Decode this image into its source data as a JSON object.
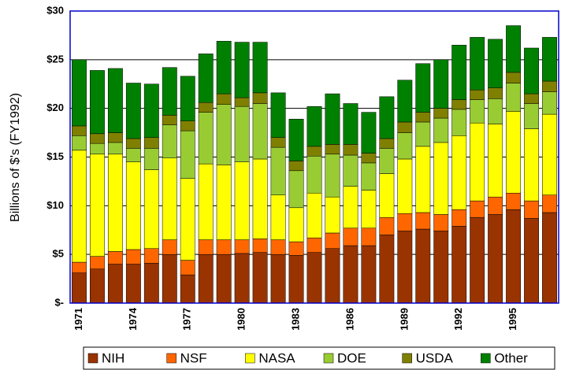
{
  "chart_data": {
    "type": "stacked_bar",
    "y_label": "Billions of $'s (FY1992)",
    "categories": [
      "1971",
      null,
      null,
      "1974",
      null,
      null,
      "1977",
      null,
      null,
      "1980",
      null,
      null,
      "1983",
      null,
      null,
      "1986",
      null,
      null,
      "1989",
      null,
      null,
      "1992",
      null,
      null,
      "1995",
      null,
      null
    ],
    "series": [
      {
        "name": "NIH",
        "color": "#993300",
        "values": [
          3.1,
          3.5,
          4.0,
          4.0,
          4.1,
          5.0,
          2.9,
          5.0,
          5.0,
          5.1,
          5.2,
          5.0,
          4.9,
          5.2,
          5.6,
          5.9,
          5.9,
          7.0,
          7.4,
          7.6,
          7.4,
          7.9,
          8.8,
          9.1,
          9.6,
          8.7,
          9.3
        ]
      },
      {
        "name": "NSF",
        "color": "#ff6600",
        "values": [
          1.1,
          1.3,
          1.3,
          1.5,
          1.5,
          1.5,
          1.5,
          1.5,
          1.5,
          1.4,
          1.4,
          1.5,
          1.4,
          1.5,
          1.6,
          1.8,
          1.8,
          1.8,
          1.8,
          1.7,
          1.7,
          1.7,
          1.7,
          1.8,
          1.7,
          1.8,
          1.8
        ]
      },
      {
        "name": "NASA",
        "color": "#ffff00",
        "values": [
          11.5,
          10.5,
          10.0,
          9.0,
          8.1,
          8.4,
          8.4,
          7.8,
          7.7,
          8.0,
          8.2,
          4.6,
          3.5,
          4.6,
          3.7,
          4.3,
          3.9,
          4.5,
          5.6,
          6.8,
          7.4,
          7.6,
          8.0,
          7.5,
          8.4,
          7.4,
          8.3
        ]
      },
      {
        "name": "DOE",
        "color": "#99cc33",
        "values": [
          1.5,
          1.1,
          1.2,
          1.4,
          2.2,
          3.4,
          4.9,
          5.3,
          6.2,
          5.7,
          5.7,
          4.9,
          3.8,
          3.8,
          4.4,
          3.2,
          2.8,
          2.6,
          2.7,
          2.5,
          2.5,
          2.7,
          2.4,
          2.6,
          2.9,
          2.6,
          2.3
        ]
      },
      {
        "name": "USDA",
        "color": "#808000",
        "values": [
          1.0,
          1.0,
          1.0,
          1.0,
          1.1,
          1.0,
          1.0,
          1.0,
          1.1,
          0.9,
          1.1,
          1.0,
          1.0,
          1.0,
          1.0,
          1.1,
          1.0,
          1.0,
          1.1,
          1.0,
          1.0,
          1.0,
          1.0,
          1.1,
          1.1,
          1.0,
          1.1
        ]
      },
      {
        "name": "Other",
        "color": "#008000",
        "values": [
          6.8,
          6.5,
          6.6,
          5.7,
          5.5,
          4.9,
          4.6,
          5.0,
          5.4,
          5.7,
          5.2,
          4.6,
          4.3,
          4.1,
          5.2,
          4.2,
          4.2,
          4.3,
          4.3,
          5.0,
          5.0,
          5.6,
          5.4,
          5.0,
          4.8,
          4.7,
          4.5
        ]
      }
    ],
    "ylim": [
      0,
      30
    ],
    "yticks": [
      {
        "value": 0,
        "label": "$-"
      },
      {
        "value": 5,
        "label": "$5"
      },
      {
        "value": 10,
        "label": "$10"
      },
      {
        "value": 15,
        "label": "$15"
      },
      {
        "value": 20,
        "label": "$20"
      },
      {
        "value": 25,
        "label": "$25"
      },
      {
        "value": 30,
        "label": "$30"
      }
    ],
    "grid": true,
    "legend": "bottom"
  }
}
